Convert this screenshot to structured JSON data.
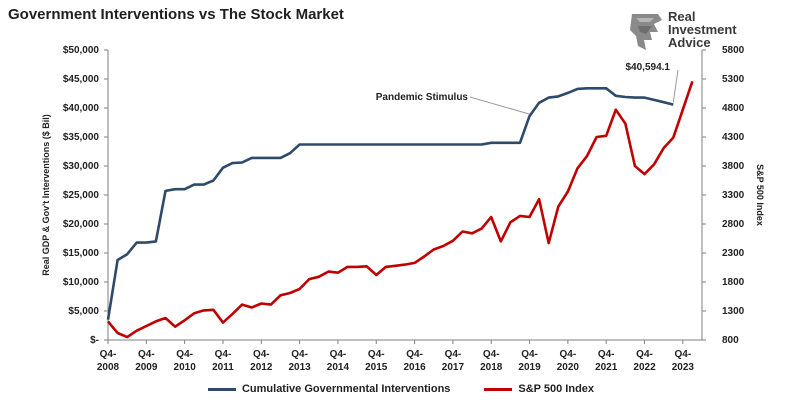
{
  "title": "Government Interventions vs The Stock Market",
  "logo": {
    "lines": [
      "Real",
      "Investment",
      "Advice"
    ]
  },
  "colors": {
    "interventions": "#2e4a6b",
    "sp500": "#c00000",
    "axis": "#7f7f7f"
  },
  "chart_data": {
    "type": "line",
    "title": "Government Interventions vs The Stock Market",
    "ylabel_left": "Real GDP & Gov't Interventions ($ Bil)",
    "ylabel_right": "S&P 500 Index",
    "left_ticks": [
      "$50,000",
      "$45,000",
      "$40,000",
      "$35,000",
      "$30,000",
      "$25,000",
      "$20,000",
      "$15,000",
      "$10,000",
      "$5,000",
      "$-"
    ],
    "right_ticks": [
      "5800",
      "5300",
      "4800",
      "4300",
      "3800",
      "3300",
      "2800",
      "2300",
      "1800",
      "1300",
      "800"
    ],
    "ylim_left": [
      0,
      50000
    ],
    "ylim_right": [
      800,
      5800
    ],
    "x_ticks": [
      {
        "q": "Q4-",
        "y": "2008"
      },
      {
        "q": "Q4-",
        "y": "2009"
      },
      {
        "q": "Q4-",
        "y": "2010"
      },
      {
        "q": "Q4-",
        "y": "2011"
      },
      {
        "q": "Q4-",
        "y": "2012"
      },
      {
        "q": "Q4-",
        "y": "2013"
      },
      {
        "q": "Q4-",
        "y": "2014"
      },
      {
        "q": "Q4-",
        "y": "2015"
      },
      {
        "q": "Q4-",
        "y": "2016"
      },
      {
        "q": "Q4-",
        "y": "2017"
      },
      {
        "q": "Q4-",
        "y": "2018"
      },
      {
        "q": "Q4-",
        "y": "2019"
      },
      {
        "q": "Q4-",
        "y": "2020"
      },
      {
        "q": "Q4-",
        "y": "2021"
      },
      {
        "q": "Q4-",
        "y": "2022"
      },
      {
        "q": "Q4-",
        "y": "2023"
      }
    ],
    "x_start": 2008.75,
    "series": [
      {
        "name": "Cumulative Governmental Interventions",
        "axis": "left",
        "x": [
          2008.75,
          2009.0,
          2009.25,
          2009.5,
          2009.75,
          2010.0,
          2010.25,
          2010.5,
          2010.75,
          2011.0,
          2011.25,
          2011.5,
          2011.75,
          2012.0,
          2012.25,
          2012.5,
          2012.75,
          2013.0,
          2013.25,
          2013.5,
          2013.75,
          2014.0,
          2014.5,
          2015.0,
          2015.5,
          2016.0,
          2016.5,
          2017.0,
          2017.5,
          2018.0,
          2018.5,
          2018.75,
          2019.0,
          2019.25,
          2019.5,
          2019.75,
          2020.0,
          2020.25,
          2020.5,
          2020.75,
          2021.0,
          2021.25,
          2021.5,
          2021.75,
          2022.0,
          2022.25,
          2022.5,
          2022.75,
          2023.0,
          2023.25,
          2023.5
        ],
        "y": [
          3500,
          13800,
          14800,
          16800,
          16800,
          17000,
          25700,
          26000,
          26000,
          26800,
          26800,
          27500,
          29700,
          30500,
          30600,
          31400,
          31400,
          31400,
          31400,
          32200,
          33700,
          33700,
          33700,
          33700,
          33700,
          33700,
          33700,
          33700,
          33700,
          33700,
          33700,
          34000,
          34000,
          34000,
          34000,
          38600,
          40900,
          41800,
          42000,
          42600,
          43300,
          43400,
          43400,
          43400,
          42100,
          41900,
          41800,
          41800,
          41400,
          41000,
          40594.1
        ]
      },
      {
        "name": "S&P 500 Index",
        "axis": "right",
        "x": [
          2008.75,
          2009.0,
          2009.25,
          2009.5,
          2009.75,
          2010.0,
          2010.25,
          2010.5,
          2010.75,
          2011.0,
          2011.25,
          2011.5,
          2011.75,
          2012.0,
          2012.25,
          2012.5,
          2012.75,
          2013.0,
          2013.25,
          2013.5,
          2013.75,
          2014.0,
          2014.25,
          2014.5,
          2014.75,
          2015.0,
          2015.25,
          2015.5,
          2015.75,
          2016.0,
          2016.25,
          2016.5,
          2016.75,
          2017.0,
          2017.25,
          2017.5,
          2017.75,
          2018.0,
          2018.25,
          2018.5,
          2018.75,
          2019.0,
          2019.25,
          2019.5,
          2019.75,
          2020.0,
          2020.25,
          2020.5,
          2020.75,
          2021.0,
          2021.25,
          2021.5,
          2021.75,
          2022.0,
          2022.25,
          2022.5,
          2022.75,
          2023.0,
          2023.25,
          2023.5
        ],
        "y": [
          1120,
          920,
          850,
          960,
          1040,
          1120,
          1180,
          1030,
          1140,
          1260,
          1310,
          1320,
          1100,
          1250,
          1410,
          1360,
          1430,
          1410,
          1570,
          1610,
          1680,
          1850,
          1890,
          1980,
          1960,
          2060,
          2060,
          2070,
          1920,
          2060,
          2080,
          2100,
          2130,
          2240,
          2360,
          2420,
          2510,
          2670,
          2640,
          2720,
          2920,
          2500,
          2830,
          2940,
          2920,
          3230,
          2470,
          3100,
          3360,
          3760,
          3970,
          4300,
          4320,
          4770,
          4530,
          3800,
          3660,
          3830,
          4110,
          4450
        ]
      }
    ],
    "sp500_tail": {
      "x": [
        2023.5,
        2023.75,
        2024.0
      ],
      "y": [
        4290,
        4770,
        5260
      ]
    },
    "annotations": [
      {
        "text": "Pandemic Stimulus",
        "series": 0
      },
      {
        "text": "$40,594.1",
        "series": 0
      }
    ],
    "legend_position": "bottom"
  }
}
